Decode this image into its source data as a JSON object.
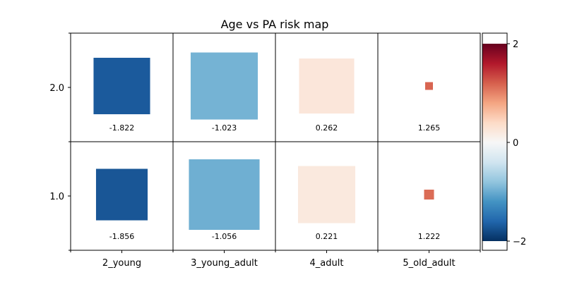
{
  "chart_data": {
    "type": "heatmap",
    "title": "Age vs PA risk map",
    "xlabel": "",
    "ylabel": "",
    "x_categories": [
      "2_young",
      "3_young_adult",
      "4_adult",
      "5_old_adult"
    ],
    "y_categories": [
      "2.0",
      "1.0"
    ],
    "cells": [
      {
        "x": "2_young",
        "y": "2.0",
        "value": -1.822,
        "size": 0.8
      },
      {
        "x": "3_young_adult",
        "y": "2.0",
        "value": -1.023,
        "size": 0.95
      },
      {
        "x": "4_adult",
        "y": "2.0",
        "value": 0.262,
        "size": 0.78
      },
      {
        "x": "5_old_adult",
        "y": "2.0",
        "value": 1.265,
        "size": 0.11
      },
      {
        "x": "2_young",
        "y": "1.0",
        "value": -1.856,
        "size": 0.73
      },
      {
        "x": "3_young_adult",
        "y": "1.0",
        "value": -1.056,
        "size": 1.0
      },
      {
        "x": "4_adult",
        "y": "1.0",
        "value": 0.221,
        "size": 0.81
      },
      {
        "x": "5_old_adult",
        "y": "1.0",
        "value": 1.222,
        "size": 0.14
      }
    ],
    "colorbar": {
      "range": [
        -2.16,
        2.16
      ],
      "ticks": [
        "2",
        "0",
        "−2"
      ],
      "colormap": "RdBu_r"
    },
    "grid": true
  }
}
